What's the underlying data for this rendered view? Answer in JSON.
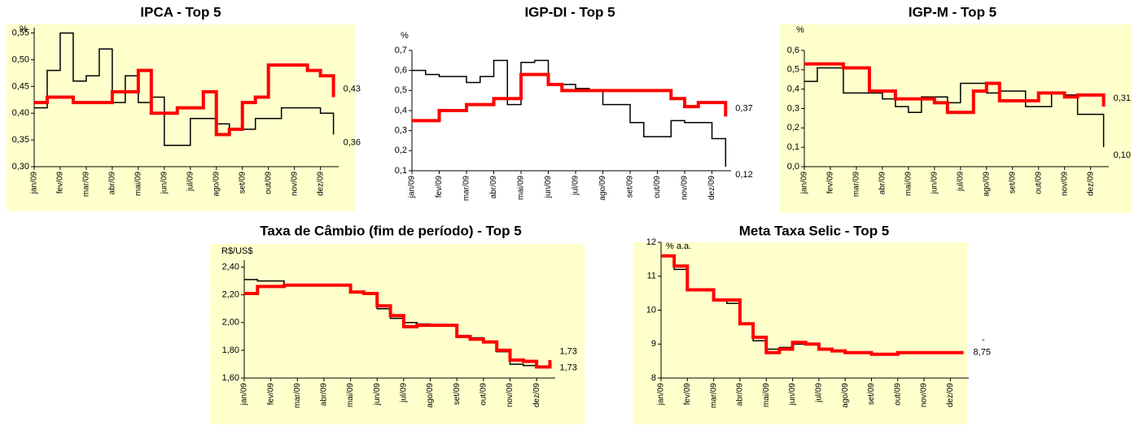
{
  "chart_data": [
    {
      "type": "line",
      "title": "IPCA - Top 5",
      "y_unit": "%",
      "background": "#ffffcc",
      "x": [
        0,
        0.5,
        1,
        1.5,
        2,
        2.5,
        3,
        3.5,
        4,
        4.5,
        5,
        5.5,
        6,
        6.5,
        7,
        7.5,
        8,
        8.5,
        9,
        9.5,
        10,
        10.5,
        11,
        11.5
      ],
      "xlim": [
        0,
        11.7
      ],
      "xticks": [
        {
          "value": 0,
          "label": "jan/09"
        },
        {
          "value": 1,
          "label": "fev/09"
        },
        {
          "value": 2,
          "label": "mar/09"
        },
        {
          "value": 3,
          "label": "abr/09"
        },
        {
          "value": 4,
          "label": "mai/09"
        },
        {
          "value": 5,
          "label": "jun/09"
        },
        {
          "value": 6,
          "label": "jul/09"
        },
        {
          "value": 7,
          "label": "ago/09"
        },
        {
          "value": 8,
          "label": "set/09"
        },
        {
          "value": 9,
          "label": "out/09"
        },
        {
          "value": 10,
          "label": "nov/09"
        },
        {
          "value": 11,
          "label": "dez/09"
        }
      ],
      "ylim": [
        0.3,
        0.56
      ],
      "yticks": [
        {
          "value": 0.3,
          "label": "0,30"
        },
        {
          "value": 0.35,
          "label": "0,35"
        },
        {
          "value": 0.4,
          "label": "0,40"
        },
        {
          "value": 0.45,
          "label": "0,45"
        },
        {
          "value": 0.5,
          "label": "0,50"
        },
        {
          "value": 0.55,
          "label": "0,55"
        }
      ],
      "series": [
        {
          "color": "#000000",
          "width": 1.5,
          "values": [
            0.41,
            0.48,
            0.55,
            0.46,
            0.47,
            0.52,
            0.42,
            0.47,
            0.42,
            0.43,
            0.34,
            0.34,
            0.39,
            0.39,
            0.38,
            0.37,
            0.37,
            0.39,
            0.39,
            0.41,
            0.41,
            0.41,
            0.4,
            0.36
          ],
          "end_label": {
            "value": 0.36,
            "label": "0,36"
          }
        },
        {
          "color": "#ff0000",
          "width": 4,
          "values": [
            0.42,
            0.43,
            0.43,
            0.42,
            0.42,
            0.42,
            0.44,
            0.44,
            0.48,
            0.4,
            0.4,
            0.41,
            0.41,
            0.44,
            0.36,
            0.37,
            0.42,
            0.43,
            0.49,
            0.49,
            0.49,
            0.48,
            0.47,
            0.43
          ],
          "end_label": {
            "value": 0.43,
            "label": "0,43"
          }
        }
      ]
    },
    {
      "type": "line",
      "title": "IGP-DI - Top 5",
      "y_unit": "%",
      "background": "#ffffff",
      "x": [
        0,
        0.5,
        1,
        1.5,
        2,
        2.5,
        3,
        3.5,
        4,
        4.5,
        5,
        5.5,
        6,
        6.5,
        7,
        7.5,
        8,
        8.5,
        9,
        9.5,
        10,
        10.5,
        11,
        11.5
      ],
      "xlim": [
        0,
        11.7
      ],
      "xticks": [
        {
          "value": 0,
          "label": "jan/09"
        },
        {
          "value": 1,
          "label": "fev/09"
        },
        {
          "value": 2,
          "label": "mar/09"
        },
        {
          "value": 3,
          "label": "abr/09"
        },
        {
          "value": 4,
          "label": "mai/09"
        },
        {
          "value": 5,
          "label": "jun/09"
        },
        {
          "value": 6,
          "label": "jul/09"
        },
        {
          "value": 7,
          "label": "ago/09"
        },
        {
          "value": 8,
          "label": "set/09"
        },
        {
          "value": 9,
          "label": "out/09"
        },
        {
          "value": 10,
          "label": "nov/09"
        },
        {
          "value": 11,
          "label": "dez/09"
        }
      ],
      "ylim": [
        0.1,
        0.7
      ],
      "yticks": [
        {
          "value": 0.1,
          "label": "0,1"
        },
        {
          "value": 0.2,
          "label": "0,2"
        },
        {
          "value": 0.3,
          "label": "0,3"
        },
        {
          "value": 0.4,
          "label": "0,4"
        },
        {
          "value": 0.5,
          "label": "0,5"
        },
        {
          "value": 0.6,
          "label": "0,6"
        },
        {
          "value": 0.7,
          "label": "0,7"
        }
      ],
      "series": [
        {
          "color": "#000000",
          "width": 1.5,
          "values": [
            0.6,
            0.58,
            0.57,
            0.57,
            0.54,
            0.57,
            0.65,
            0.43,
            0.64,
            0.65,
            0.53,
            0.53,
            0.51,
            0.5,
            0.43,
            0.43,
            0.34,
            0.27,
            0.27,
            0.35,
            0.34,
            0.34,
            0.26,
            0.12
          ],
          "end_label": {
            "value": 0.12,
            "label": "0,12"
          }
        },
        {
          "color": "#ff0000",
          "width": 4,
          "values": [
            0.35,
            0.35,
            0.4,
            0.4,
            0.43,
            0.43,
            0.46,
            0.46,
            0.58,
            0.58,
            0.53,
            0.5,
            0.5,
            0.5,
            0.5,
            0.5,
            0.5,
            0.5,
            0.5,
            0.46,
            0.42,
            0.44,
            0.44,
            0.37
          ],
          "end_label": {
            "value": 0.37,
            "label": "0,37"
          }
        }
      ]
    },
    {
      "type": "line",
      "title": "IGP-M - Top 5",
      "y_unit": "%",
      "background": "#ffffcc",
      "x": [
        0,
        0.5,
        1,
        1.5,
        2,
        2.5,
        3,
        3.5,
        4,
        4.5,
        5,
        5.5,
        6,
        6.5,
        7,
        7.5,
        8,
        8.5,
        9,
        9.5,
        10,
        10.5,
        11,
        11.5
      ],
      "xlim": [
        0,
        11.7
      ],
      "xticks": [
        {
          "value": 0,
          "label": "jan/09"
        },
        {
          "value": 1,
          "label": "fev/09"
        },
        {
          "value": 2,
          "label": "mar/09"
        },
        {
          "value": 3,
          "label": "abr/09"
        },
        {
          "value": 4,
          "label": "mai/09"
        },
        {
          "value": 5,
          "label": "jun/09"
        },
        {
          "value": 6,
          "label": "jul/09"
        },
        {
          "value": 7,
          "label": "ago/09"
        },
        {
          "value": 8,
          "label": "set/09"
        },
        {
          "value": 9,
          "label": "out/09"
        },
        {
          "value": 10,
          "label": "nov/09"
        },
        {
          "value": 11,
          "label": "dez/09"
        }
      ],
      "ylim": [
        0,
        0.6
      ],
      "yticks": [
        {
          "value": 0,
          "label": "0,0"
        },
        {
          "value": 0.1,
          "label": "0,1"
        },
        {
          "value": 0.2,
          "label": "0,2"
        },
        {
          "value": 0.3,
          "label": "0,3"
        },
        {
          "value": 0.4,
          "label": "0,4"
        },
        {
          "value": 0.5,
          "label": "0,5"
        },
        {
          "value": 0.6,
          "label": "0,6"
        }
      ],
      "series": [
        {
          "color": "#000000",
          "width": 1.5,
          "values": [
            0.44,
            0.51,
            0.51,
            0.38,
            0.38,
            0.38,
            0.35,
            0.31,
            0.28,
            0.36,
            0.36,
            0.33,
            0.43,
            0.43,
            0.38,
            0.39,
            0.39,
            0.31,
            0.31,
            0.38,
            0.37,
            0.27,
            0.27,
            0.1
          ],
          "end_label": {
            "value": 0.1,
            "label": "0,10"
          }
        },
        {
          "color": "#ff0000",
          "width": 4,
          "values": [
            0.53,
            0.53,
            0.53,
            0.51,
            0.51,
            0.39,
            0.39,
            0.35,
            0.35,
            0.35,
            0.33,
            0.28,
            0.28,
            0.39,
            0.43,
            0.34,
            0.34,
            0.34,
            0.38,
            0.38,
            0.36,
            0.37,
            0.37,
            0.31
          ],
          "end_label": {
            "value": 0.31,
            "label": "0,31"
          }
        }
      ]
    },
    {
      "type": "line",
      "title": "Taxa de Câmbio (fim de período) - Top 5",
      "y_unit": "R$/US$",
      "background": "#ffffcc",
      "x": [
        0,
        0.5,
        1,
        1.5,
        2,
        2.5,
        3,
        3.5,
        4,
        4.5,
        5,
        5.5,
        6,
        6.5,
        7,
        7.5,
        8,
        8.5,
        9,
        9.5,
        10,
        10.5,
        11,
        11.5
      ],
      "xlim": [
        0,
        11.7
      ],
      "xticks": [
        {
          "value": 0,
          "label": "jan/09"
        },
        {
          "value": 1,
          "label": "fev/09"
        },
        {
          "value": 2,
          "label": "mar/09"
        },
        {
          "value": 3,
          "label": "abr/09"
        },
        {
          "value": 4,
          "label": "mai/09"
        },
        {
          "value": 5,
          "label": "jun/09"
        },
        {
          "value": 6,
          "label": "jul/09"
        },
        {
          "value": 7,
          "label": "ago/09"
        },
        {
          "value": 8,
          "label": "set/09"
        },
        {
          "value": 9,
          "label": "out/09"
        },
        {
          "value": 10,
          "label": "nov/09"
        },
        {
          "value": 11,
          "label": "dez/09"
        }
      ],
      "ylim": [
        1.6,
        2.45
      ],
      "yticks": [
        {
          "value": 1.6,
          "label": "1,60"
        },
        {
          "value": 1.8,
          "label": "1,80"
        },
        {
          "value": 2.0,
          "label": "2,00"
        },
        {
          "value": 2.2,
          "label": "2,20"
        },
        {
          "value": 2.4,
          "label": "2,40"
        }
      ],
      "series": [
        {
          "color": "#000000",
          "width": 1.5,
          "values": [
            2.31,
            2.3,
            2.3,
            2.27,
            2.27,
            2.27,
            2.27,
            2.27,
            2.22,
            2.21,
            2.1,
            2.03,
            2.0,
            1.99,
            1.98,
            1.98,
            1.9,
            1.89,
            1.86,
            1.79,
            1.7,
            1.69,
            1.68,
            1.73
          ],
          "end_label": {
            "value": 1.73,
            "label": "1,73"
          }
        },
        {
          "color": "#ff0000",
          "width": 4,
          "values": [
            2.21,
            2.26,
            2.26,
            2.27,
            2.27,
            2.27,
            2.27,
            2.27,
            2.22,
            2.21,
            2.12,
            2.05,
            1.97,
            1.98,
            1.98,
            1.98,
            1.9,
            1.88,
            1.86,
            1.8,
            1.73,
            1.72,
            1.68,
            1.73
          ],
          "end_label": {
            "value": 1.73,
            "label": "1,73"
          }
        }
      ]
    },
    {
      "type": "line",
      "title": "Meta Taxa Selic - Top 5",
      "y_unit": "% a.a.",
      "background": "#ffffcc",
      "note": "-",
      "x": [
        0,
        0.5,
        1,
        1.5,
        2,
        2.5,
        3,
        3.5,
        4,
        4.5,
        5,
        5.5,
        6,
        6.5,
        7,
        7.5,
        8,
        8.5,
        9,
        9.5,
        10,
        10.5,
        11,
        11.5
      ],
      "xlim": [
        0,
        11.7
      ],
      "xticks": [
        {
          "value": 0,
          "label": "jan/09"
        },
        {
          "value": 1,
          "label": "fev/09"
        },
        {
          "value": 2,
          "label": "mar/09"
        },
        {
          "value": 3,
          "label": "abr/09"
        },
        {
          "value": 4,
          "label": "mai/09"
        },
        {
          "value": 5,
          "label": "jun/09"
        },
        {
          "value": 6,
          "label": "jul/09"
        },
        {
          "value": 7,
          "label": "ago/09"
        },
        {
          "value": 8,
          "label": "set/09"
        },
        {
          "value": 9,
          "label": "out/09"
        },
        {
          "value": 10,
          "label": "nov/09"
        },
        {
          "value": 11,
          "label": "dez/09"
        }
      ],
      "ylim": [
        8,
        12
      ],
      "yticks": [
        8,
        9,
        10,
        11,
        12
      ],
      "series": [
        {
          "color": "#000000",
          "width": 1.5,
          "values": [
            11.6,
            11.2,
            10.6,
            10.6,
            10.3,
            10.2,
            9.6,
            9.1,
            8.85,
            8.9,
            9.0,
            9.0,
            8.85,
            8.8,
            8.75,
            8.75,
            8.7,
            8.7,
            8.75,
            8.75,
            8.75,
            8.75,
            8.75,
            8.75
          ]
        },
        {
          "color": "#ff0000",
          "width": 4,
          "values": [
            11.6,
            11.3,
            10.6,
            10.6,
            10.3,
            10.3,
            9.6,
            9.2,
            8.75,
            8.85,
            9.05,
            9.0,
            8.85,
            8.8,
            8.75,
            8.75,
            8.7,
            8.7,
            8.75,
            8.75,
            8.75,
            8.75,
            8.75,
            8.75
          ],
          "end_label": {
            "value": 8.75,
            "label": "8,75"
          }
        }
      ]
    }
  ]
}
